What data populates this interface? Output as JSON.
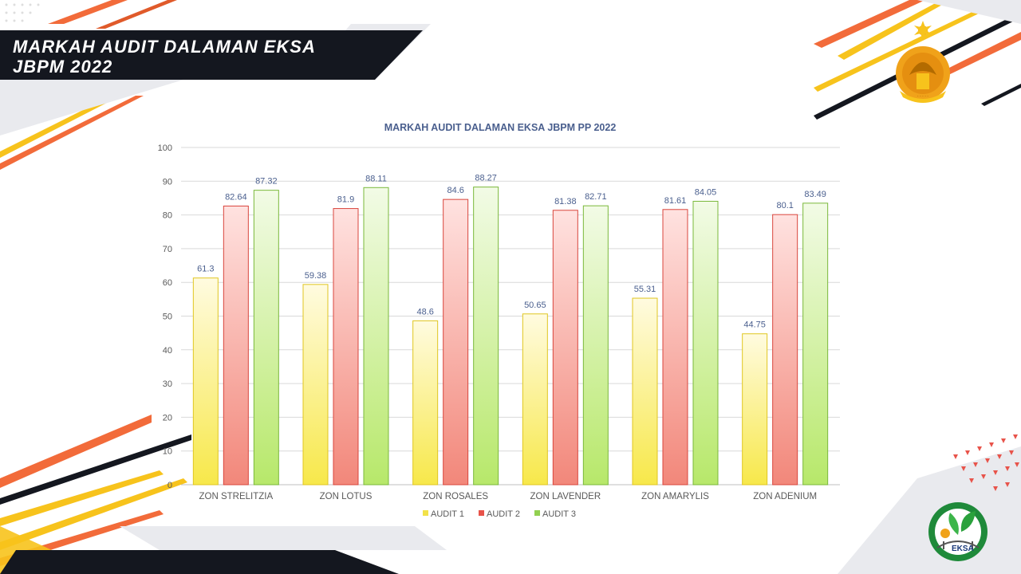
{
  "slide": {
    "title": "MARKAH AUDIT DALAMAN EKSA\nJBPM 2022",
    "eksa_logo_text": "EKSA"
  },
  "colors": {
    "header_bg": "#14171f",
    "stripe_orange": "#f26b3a",
    "stripe_yellow": "#f7c31c",
    "grid": "#d9d9d9",
    "audit1": "#f2e24a",
    "audit2": "#e8534a",
    "audit3": "#92d050"
  },
  "chart_data": {
    "type": "bar",
    "title": "MARKAH  AUDIT  DALAMAN  EKSA  JBPM PP 2022",
    "categories": [
      "ZON STRELITZIA",
      "ZON LOTUS",
      "ZON ROSALES",
      "ZON LAVENDER",
      "ZON AMARYLIS",
      "ZON ADENIUM"
    ],
    "series": [
      {
        "name": "AUDIT 1",
        "values": [
          61.3,
          59.38,
          48.6,
          50.65,
          55.31,
          44.75
        ]
      },
      {
        "name": "AUDIT 2",
        "values": [
          82.64,
          81.9,
          84.6,
          81.38,
          81.61,
          80.1
        ]
      },
      {
        "name": "AUDIT 3",
        "values": [
          87.32,
          88.11,
          88.27,
          82.71,
          84.05,
          83.49
        ]
      }
    ],
    "ylim": [
      0,
      100
    ],
    "yticks": [
      0,
      10,
      20,
      30,
      40,
      50,
      60,
      70,
      80,
      90,
      100
    ],
    "grid": true,
    "legend": "bottom",
    "xlabel": "",
    "ylabel": ""
  }
}
